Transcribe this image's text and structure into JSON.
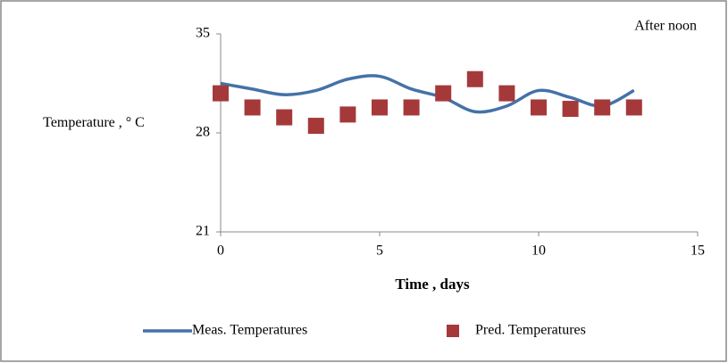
{
  "chart_data": {
    "type": "scatter",
    "annotation": "After noon",
    "x_label": "Time , days",
    "y_label": "Temperature , ° C",
    "xlim": [
      0,
      15
    ],
    "xticks": [
      0,
      5,
      10,
      15
    ],
    "ylim": [
      21,
      35
    ],
    "yticks": [
      21,
      28,
      35
    ],
    "grid": false,
    "legend": "bottom",
    "series": [
      {
        "name": "Meas. Temperatures",
        "color": "#4472a8",
        "style": "line",
        "x": [
          0,
          1,
          2,
          3,
          4,
          5,
          6,
          7,
          8,
          9,
          10,
          11,
          12,
          13
        ],
        "values": [
          31.5,
          31.1,
          30.7,
          31.0,
          31.8,
          32.0,
          31.1,
          30.5,
          29.5,
          29.9,
          31.0,
          30.5,
          29.9,
          31.0
        ]
      },
      {
        "name": "Pred. Temperatures",
        "color": "#a5393a",
        "style": "marker",
        "x": [
          0,
          1,
          2,
          3,
          4,
          5,
          6,
          7,
          8,
          9,
          10,
          11,
          12,
          13
        ],
        "values": [
          30.8,
          29.8,
          29.1,
          28.5,
          29.3,
          29.8,
          29.8,
          30.8,
          31.8,
          30.8,
          29.8,
          29.7,
          29.8,
          29.8
        ]
      }
    ]
  }
}
